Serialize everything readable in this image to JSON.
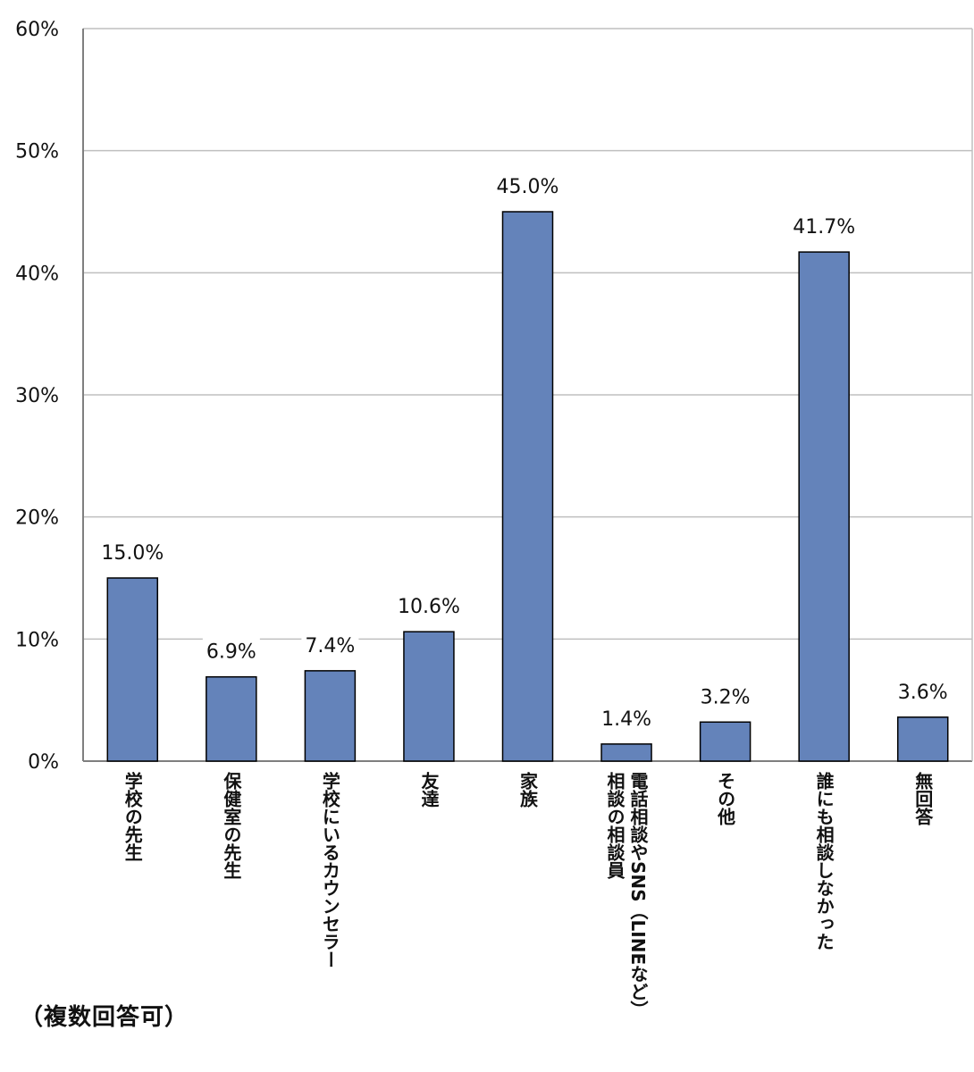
{
  "chart_data": {
    "type": "bar",
    "categories": [
      [
        "学校の先生"
      ],
      [
        "保健室の先生"
      ],
      [
        "学校にいるカウンセラー"
      ],
      [
        "友達"
      ],
      [
        "家族"
      ],
      [
        "電話相談やSNS（LINEなど）",
        "相談の相談員"
      ],
      [
        "その他"
      ],
      [
        "誰にも相談しなかった"
      ],
      [
        "無回答"
      ]
    ],
    "values": [
      15.0,
      6.9,
      7.4,
      10.6,
      45.0,
      1.4,
      3.2,
      41.7,
      3.6
    ],
    "data_labels": [
      "15.0%",
      "6.9%",
      "7.4%",
      "10.6%",
      "45.0%",
      "1.4%",
      "3.2%",
      "41.7%",
      "3.6%"
    ],
    "yticks": [
      "0%",
      "10%",
      "20%",
      "30%",
      "40%",
      "50%",
      "60%"
    ],
    "ylim": [
      0,
      60
    ],
    "grid": true,
    "bar_color": "#6483BA",
    "grid_color": "#BFBFBF",
    "axis_color": "#7F7F7F"
  },
  "footnote": "（複数回答可）"
}
